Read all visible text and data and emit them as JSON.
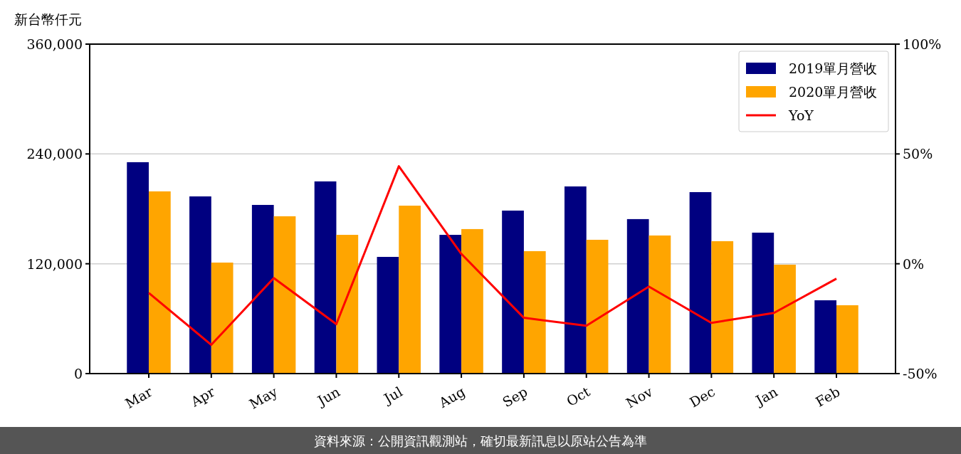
{
  "chart_data": {
    "type": "bar",
    "ylabel": "新台幣仟元",
    "categories": [
      "Mar",
      "Apr",
      "May",
      "Jun",
      "Jul",
      "Aug",
      "Sep",
      "Oct",
      "Nov",
      "Dec",
      "Jan",
      "Feb"
    ],
    "series": [
      {
        "name": "2019單月營收",
        "color": "#000080",
        "values": [
          231000,
          193600,
          184300,
          210000,
          127500,
          151600,
          178100,
          204500,
          168800,
          198300,
          154000,
          80100
        ]
      },
      {
        "name": "2020單月營收",
        "color": "#ffa500",
        "values": [
          199100,
          121300,
          171900,
          151600,
          183500,
          157900,
          133800,
          146200,
          150900,
          144700,
          119000,
          74700
        ]
      },
      {
        "name": "YoY",
        "type": "line",
        "axis": "y2",
        "color": "#ff0000",
        "values": [
          -13.3,
          -36.9,
          -6.5,
          -27.5,
          44.4,
          4.5,
          -24.6,
          -28.2,
          -10.4,
          -26.9,
          -22.4,
          -6.8
        ]
      }
    ],
    "ylim": [
      0,
      360000
    ],
    "yticks": [
      0,
      {
        "value": 120000,
        "label": "120,000"
      },
      {
        "value": 240000,
        "label": "240,000"
      },
      {
        "value": 360000,
        "label": "360,000"
      }
    ],
    "y2lim": [
      -50,
      100
    ],
    "y2ticks": [
      {
        "value": -50,
        "label": "-50%"
      },
      {
        "value": 0,
        "label": "0%"
      },
      {
        "value": 50,
        "label": "50%"
      },
      {
        "value": 100,
        "label": "100%"
      }
    ],
    "grid": "y",
    "legend": "top right",
    "annotations": [
      "資料來源：公開資訊觀測站，確切最新訊息以原站公告為準"
    ]
  }
}
